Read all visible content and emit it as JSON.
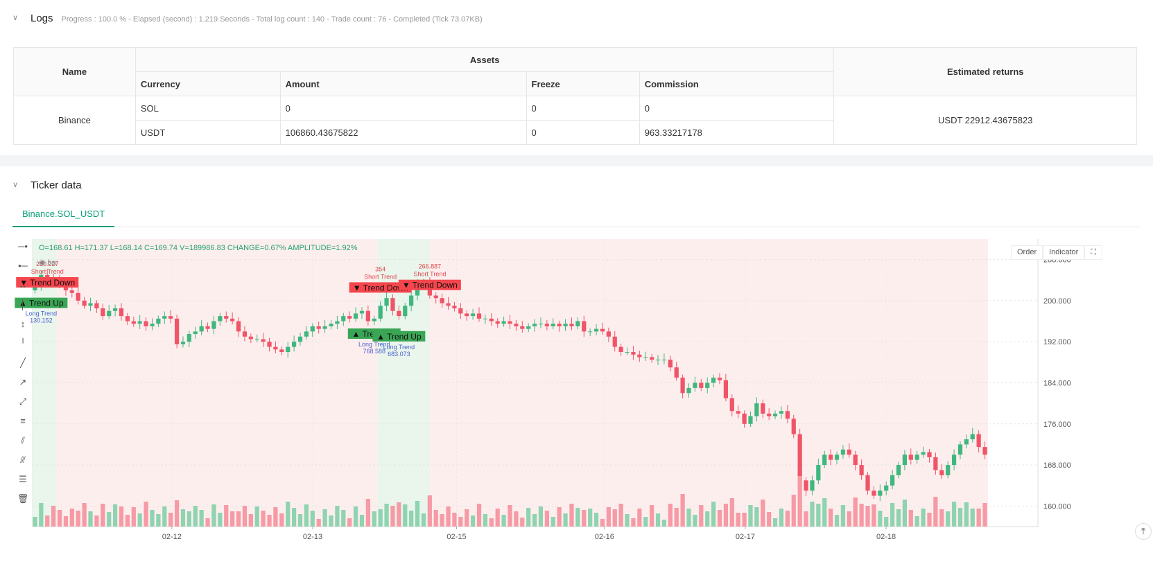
{
  "logs": {
    "title": "Logs",
    "meta": "Progress : 100.0 % - Elapsed (second) : 1.219  Seconds - Total log count : 140 - Trade count : 76 - Completed (Tick 73.07KB)",
    "table": {
      "h_name": "Name",
      "h_assets": "Assets",
      "h_returns": "Estimated returns",
      "h_currency": "Currency",
      "h_amount": "Amount",
      "h_freeze": "Freeze",
      "h_commission": "Commission",
      "exchange": "Binance",
      "returns": "USDT 22912.43675823",
      "rows": [
        {
          "currency": "SOL",
          "amount": "0",
          "freeze": "0",
          "commission": "0"
        },
        {
          "currency": "USDT",
          "amount": "106860.43675822",
          "freeze": "0",
          "commission": "963.33217178"
        }
      ]
    }
  },
  "ticker": {
    "title": "Ticker data",
    "tab": "Binance.SOL_USDT",
    "ohlc_label": "O=168.61 H=171.37 L=168.14 C=169.74 V=189986.83 CHANGE=0.67% AMPLITUDE=1.92%",
    "legend_bar": "bar",
    "btn_order": "Order",
    "btn_indicator": "Indicator"
  },
  "chart_data": {
    "type": "candlestick",
    "ylim": [
      156,
      212
    ],
    "y_ticks": [
      "208.000",
      "200.000",
      "192.000",
      "184.000",
      "176.000",
      "168.000",
      "160.000"
    ],
    "x_ticks": [
      "02-12",
      "02-13",
      "02-15",
      "02-16",
      "02-17",
      "02-18"
    ],
    "annotations": [
      {
        "label": "▼ Trend Down",
        "kind": "short",
        "top_text": "280.227",
        "sub_text": "Short Trend",
        "x_index": 2,
        "price": 203.5
      },
      {
        "label": "▲ Trend Up",
        "kind": "long",
        "top_text": "Long Trend",
        "sub_text": "130.152",
        "x_index": 1,
        "price": 199.5
      },
      {
        "label": "▼ Trend Down",
        "kind": "short",
        "top_text": "354",
        "sub_text": "Short Trend",
        "x_index": 56,
        "price": 202.5
      },
      {
        "label": "▼ Trend Down",
        "kind": "short",
        "top_text": "266.887",
        "sub_text": "Short Trend",
        "x_index": 64,
        "price": 203
      },
      {
        "label": "▲ Trend Up",
        "kind": "long",
        "top_text": "Long Trend",
        "sub_text": "768.588",
        "x_index": 55,
        "price": 193.5
      },
      {
        "label": "▲ Trend Up",
        "kind": "long",
        "top_text": "Long Trend",
        "sub_text": "683.073",
        "x_index": 59,
        "price": 193
      }
    ],
    "close": [
      203,
      205,
      204.5,
      204,
      203,
      202,
      201.5,
      200,
      199,
      199.5,
      198.5,
      197,
      198,
      198.5,
      197,
      196,
      195.5,
      196,
      195,
      195.5,
      196.5,
      197,
      196.5,
      191.5,
      192,
      193.5,
      194,
      195,
      194.5,
      196,
      197,
      196.5,
      196,
      194,
      193,
      192.5,
      192.5,
      192,
      191,
      190.5,
      190,
      191,
      192,
      193,
      194,
      195,
      194.5,
      195,
      195.5,
      196,
      197,
      196.5,
      197.5,
      198,
      196,
      196.5,
      199,
      200.5,
      198,
      197,
      199,
      201,
      203,
      203.5,
      201,
      200.5,
      199.5,
      199,
      198.5,
      197.5,
      197,
      197.5,
      196.5,
      196.5,
      196,
      195.5,
      196,
      195.5,
      195,
      194.5,
      195,
      195.5,
      195.5,
      195,
      195.5,
      195,
      195.5,
      195,
      196,
      194,
      194,
      194.5,
      194,
      193,
      191,
      190,
      190,
      189.5,
      189,
      189,
      188.5,
      188.5,
      188.5,
      187,
      185,
      182,
      183,
      184,
      183,
      184,
      185,
      184.5,
      181,
      178.5,
      178,
      176,
      177.5,
      180,
      178,
      177.5,
      178,
      178.5,
      177,
      174,
      165,
      163,
      165,
      168,
      170,
      169,
      170,
      171,
      170,
      168,
      166,
      163,
      162,
      163,
      164,
      166,
      168,
      170,
      169,
      170,
      170.5,
      169.5,
      167,
      166,
      168,
      170,
      172,
      173,
      174,
      171.5,
      170
    ]
  }
}
